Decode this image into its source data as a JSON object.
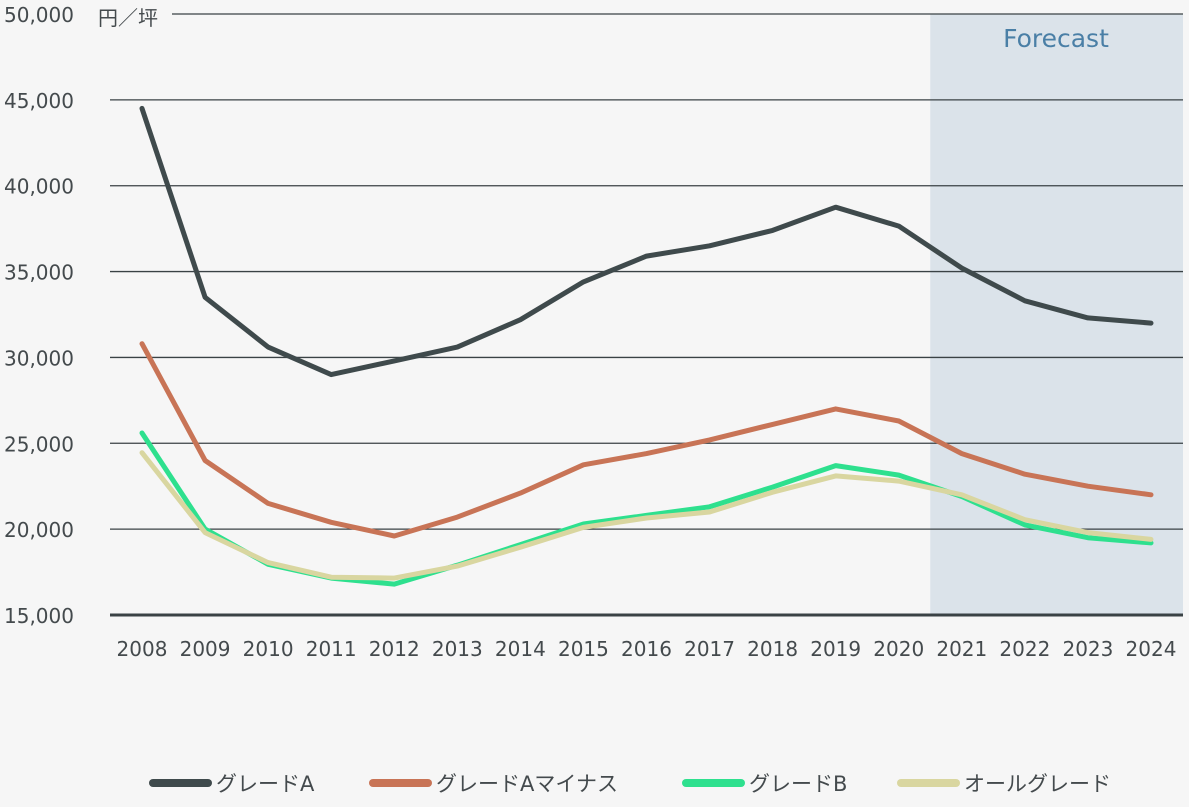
{
  "chart_data": {
    "type": "line",
    "unit_label": "円／坪",
    "forecast_label": "Forecast",
    "forecast_range": [
      "2021",
      "2024"
    ],
    "x": [
      "2008",
      "2009",
      "2010",
      "2011",
      "2012",
      "2013",
      "2014",
      "2015",
      "2016",
      "2017",
      "2018",
      "2019",
      "2020",
      "2021",
      "2022",
      "2023",
      "2024"
    ],
    "ylim": [
      15000,
      50000
    ],
    "yticks": [
      15000,
      20000,
      25000,
      30000,
      35000,
      40000,
      45000,
      50000
    ],
    "ytick_labels": [
      "15,000",
      "20,000",
      "25,000",
      "30,000",
      "35,000",
      "40,000",
      "45,000",
      "50,000"
    ],
    "grid": true,
    "legend_position": "bottom",
    "series": [
      {
        "name": "グレードA",
        "color": "#3f4a4c",
        "values": [
          44500,
          33500,
          30600,
          29000,
          29800,
          30600,
          32200,
          34400,
          35900,
          36500,
          37400,
          38750,
          37650,
          35200,
          33300,
          32300,
          32000
        ]
      },
      {
        "name": "グレードAマイナス",
        "color": "#c87456",
        "values": [
          30800,
          24000,
          21500,
          20400,
          19600,
          20700,
          22100,
          23750,
          24400,
          25200,
          26100,
          27000,
          26300,
          24400,
          23200,
          22500,
          22000
        ]
      },
      {
        "name": "グレードB",
        "color": "#2ee08e",
        "values": [
          25600,
          20000,
          17950,
          17150,
          16800,
          17900,
          19100,
          20300,
          20800,
          21300,
          22450,
          23700,
          23150,
          21900,
          20250,
          19500,
          19200
        ]
      },
      {
        "name": "オールグレード",
        "color": "#d9d6a0",
        "values": [
          24450,
          19800,
          18050,
          17200,
          17150,
          17850,
          18950,
          20100,
          20650,
          21000,
          22150,
          23100,
          22800,
          22000,
          20550,
          19800,
          19400
        ]
      }
    ]
  }
}
